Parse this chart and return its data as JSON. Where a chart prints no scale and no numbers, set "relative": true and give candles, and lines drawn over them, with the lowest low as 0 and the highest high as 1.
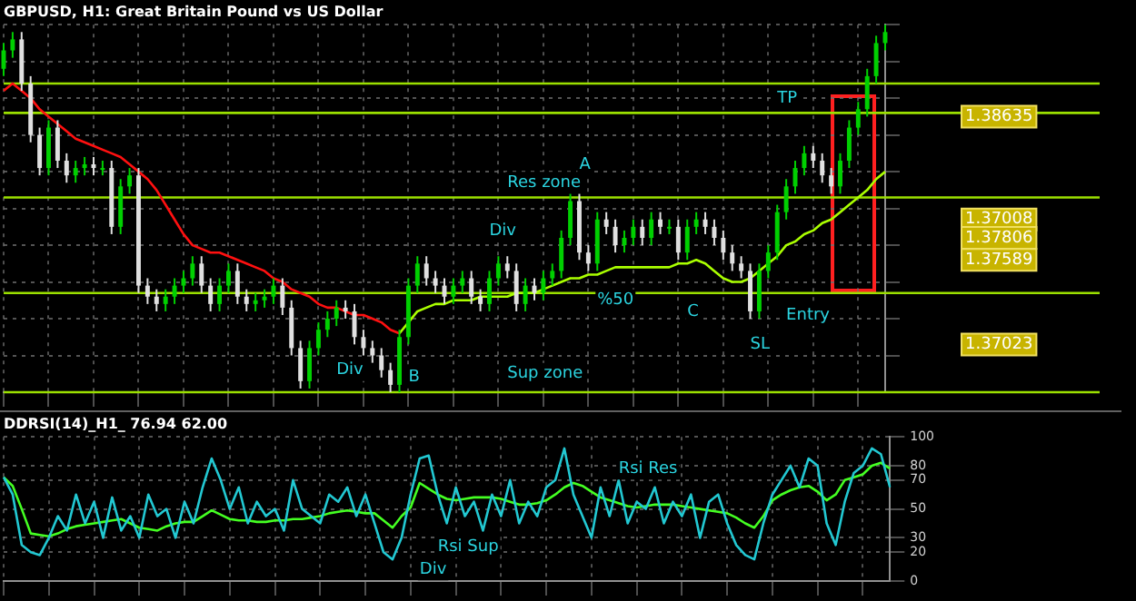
{
  "chart_data": [
    {
      "type": "candlestick",
      "title": "GBPUSD, H1: Great Britain Pound vs US Dollar",
      "relative": true,
      "grid": true,
      "tick_labels": false,
      "colors": [
        "#00d000",
        "#00d000",
        "#e0e0e0",
        "#e0e0e0",
        "#e0e0e0",
        "#00d000",
        "#e0e0e0",
        "#e0e0e0",
        "#00d000",
        "#00d000",
        "#e0e0e0",
        "#00d000",
        "#e0e0e0",
        "#00d000",
        "#00d000",
        "#e0e0e0",
        "#e0e0e0",
        "#e0e0e0",
        "#00d000",
        "#00d000",
        "#00d000",
        "#00d000",
        "#e0e0e0",
        "#e0e0e0",
        "#00d000",
        "#00d000",
        "#e0e0e0",
        "#e0e0e0",
        "#00d000",
        "#00d000",
        "#00d000",
        "#e0e0e0",
        "#e0e0e0",
        "#e0e0e0",
        "#00d000",
        "#00d000",
        "#00d000",
        "#00d000",
        "#e0e0e0",
        "#e0e0e0",
        "#e0e0e0",
        "#e0e0e0",
        "#e0e0e0",
        "#e0e0e0",
        "#00d000",
        "#00d000",
        "#00d000",
        "#e0e0e0",
        "#e0e0e0",
        "#e0e0e0",
        "#00d000",
        "#00d000",
        "#e0e0e0",
        "#e0e0e0",
        "#00d000",
        "#00d000",
        "#e0e0e0",
        "#e0e0e0",
        "#00d000",
        "#e0e0e0",
        "#00d000",
        "#00d000",
        "#00d000",
        "#00d000",
        "#e0e0e0",
        "#e0e0e0",
        "#00d000",
        "#e0e0e0",
        "#e0e0e0",
        "#00d000",
        "#00d000",
        "#e0e0e0",
        "#00d000",
        "#e0e0e0",
        "#00d000",
        "#e0e0e0",
        "#00d000",
        "#00d000",
        "#e0e0e0",
        "#e0e0e0",
        "#e0e0e0",
        "#e0e0e0",
        "#e0e0e0",
        "#e0e0e0",
        "#00d000",
        "#00d000",
        "#00d000",
        "#00d000",
        "#00d000",
        "#00d000",
        "#e0e0e0",
        "#e0e0e0",
        "#e0e0e0",
        "#00d000",
        "#00d000",
        "#00d000",
        "#00d000",
        "#00d000",
        "#00d000"
      ],
      "categories": [
        null,
        null,
        null,
        null,
        null,
        null,
        null,
        null,
        null,
        null,
        null,
        null,
        null,
        null,
        null,
        null,
        null,
        null,
        null,
        null,
        null,
        null,
        null,
        null,
        null,
        null,
        null,
        null,
        null,
        null,
        null,
        null,
        null,
        null,
        null,
        null,
        null,
        null,
        null,
        null,
        null,
        null,
        null,
        null,
        null,
        null,
        null,
        null,
        null,
        null,
        null,
        null,
        null,
        null,
        null,
        null,
        null,
        null,
        null,
        null,
        null,
        null,
        null,
        null,
        null,
        null,
        null,
        null,
        null,
        null,
        null,
        null,
        null,
        null,
        null,
        null,
        null,
        null,
        null,
        null,
        null,
        null,
        null,
        null,
        null,
        null,
        null,
        null,
        null,
        null,
        null,
        null,
        null,
        null,
        null,
        null,
        null,
        null,
        null
      ],
      "ohlc": [
        [
          0.88,
          0.95,
          0.86,
          0.93
        ],
        [
          0.93,
          0.98,
          0.91,
          0.96
        ],
        [
          0.96,
          0.98,
          0.82,
          0.84
        ],
        [
          0.84,
          0.86,
          0.68,
          0.7
        ],
        [
          0.7,
          0.72,
          0.59,
          0.61
        ],
        [
          0.61,
          0.74,
          0.59,
          0.72
        ],
        [
          0.72,
          0.74,
          0.61,
          0.63
        ],
        [
          0.63,
          0.65,
          0.57,
          0.59
        ],
        [
          0.59,
          0.63,
          0.57,
          0.61
        ],
        [
          0.61,
          0.64,
          0.59,
          0.62
        ],
        [
          0.62,
          0.64,
          0.59,
          0.61
        ],
        [
          0.61,
          0.63,
          0.59,
          0.61
        ],
        [
          0.61,
          0.63,
          0.43,
          0.45
        ],
        [
          0.45,
          0.58,
          0.43,
          0.56
        ],
        [
          0.56,
          0.61,
          0.54,
          0.59
        ],
        [
          0.59,
          0.61,
          0.27,
          0.29
        ],
        [
          0.29,
          0.31,
          0.24,
          0.26
        ],
        [
          0.26,
          0.28,
          0.22,
          0.24
        ],
        [
          0.24,
          0.28,
          0.22,
          0.26
        ],
        [
          0.26,
          0.31,
          0.24,
          0.29
        ],
        [
          0.29,
          0.33,
          0.27,
          0.31
        ],
        [
          0.31,
          0.37,
          0.29,
          0.35
        ],
        [
          0.35,
          0.37,
          0.27,
          0.29
        ],
        [
          0.29,
          0.31,
          0.22,
          0.24
        ],
        [
          0.24,
          0.31,
          0.22,
          0.29
        ],
        [
          0.29,
          0.35,
          0.27,
          0.33
        ],
        [
          0.33,
          0.35,
          0.24,
          0.26
        ],
        [
          0.26,
          0.28,
          0.22,
          0.24
        ],
        [
          0.24,
          0.27,
          0.22,
          0.25
        ],
        [
          0.25,
          0.28,
          0.23,
          0.26
        ],
        [
          0.26,
          0.31,
          0.24,
          0.29
        ],
        [
          0.29,
          0.31,
          0.21,
          0.23
        ],
        [
          0.23,
          0.25,
          0.1,
          0.12
        ],
        [
          0.12,
          0.14,
          0.01,
          0.03
        ],
        [
          0.03,
          0.14,
          0.01,
          0.12
        ],
        [
          0.12,
          0.19,
          0.1,
          0.17
        ],
        [
          0.17,
          0.22,
          0.15,
          0.2
        ],
        [
          0.2,
          0.25,
          0.18,
          0.23
        ],
        [
          0.23,
          0.25,
          0.2,
          0.22
        ],
        [
          0.22,
          0.24,
          0.13,
          0.15
        ],
        [
          0.15,
          0.17,
          0.1,
          0.12
        ],
        [
          0.12,
          0.14,
          0.08,
          0.1
        ],
        [
          0.1,
          0.12,
          0.04,
          0.06
        ],
        [
          0.06,
          0.08,
          0,
          0.02
        ],
        [
          0.02,
          0.17,
          0,
          0.15
        ],
        [
          0.15,
          0.31,
          0.13,
          0.29
        ],
        [
          0.29,
          0.37,
          0.27,
          0.35
        ],
        [
          0.35,
          0.37,
          0.29,
          0.31
        ],
        [
          0.31,
          0.33,
          0.27,
          0.29
        ],
        [
          0.29,
          0.31,
          0.24,
          0.26
        ],
        [
          0.26,
          0.31,
          0.24,
          0.29
        ],
        [
          0.29,
          0.33,
          0.27,
          0.31
        ],
        [
          0.31,
          0.33,
          0.24,
          0.26
        ],
        [
          0.26,
          0.28,
          0.22,
          0.24
        ],
        [
          0.24,
          0.33,
          0.22,
          0.31
        ],
        [
          0.31,
          0.37,
          0.29,
          0.35
        ],
        [
          0.35,
          0.37,
          0.31,
          0.33
        ],
        [
          0.33,
          0.35,
          0.22,
          0.24
        ],
        [
          0.24,
          0.31,
          0.22,
          0.29
        ],
        [
          0.29,
          0.31,
          0.25,
          0.27
        ],
        [
          0.27,
          0.33,
          0.25,
          0.31
        ],
        [
          0.31,
          0.35,
          0.29,
          0.33
        ],
        [
          0.33,
          0.44,
          0.31,
          0.42
        ],
        [
          0.42,
          0.54,
          0.4,
          0.52
        ],
        [
          0.52,
          0.54,
          0.36,
          0.38
        ],
        [
          0.38,
          0.4,
          0.33,
          0.35
        ],
        [
          0.35,
          0.49,
          0.33,
          0.47
        ],
        [
          0.47,
          0.49,
          0.43,
          0.45
        ],
        [
          0.45,
          0.47,
          0.38,
          0.4
        ],
        [
          0.4,
          0.44,
          0.38,
          0.42
        ],
        [
          0.42,
          0.47,
          0.4,
          0.45
        ],
        [
          0.45,
          0.47,
          0.4,
          0.42
        ],
        [
          0.42,
          0.49,
          0.4,
          0.47
        ],
        [
          0.47,
          0.49,
          0.43,
          0.45
        ],
        [
          0.45,
          0.47,
          0.43,
          0.45
        ],
        [
          0.45,
          0.47,
          0.36,
          0.38
        ],
        [
          0.38,
          0.47,
          0.36,
          0.45
        ],
        [
          0.45,
          0.49,
          0.43,
          0.47
        ],
        [
          0.47,
          0.49,
          0.43,
          0.45
        ],
        [
          0.45,
          0.47,
          0.4,
          0.42
        ],
        [
          0.42,
          0.44,
          0.36,
          0.38
        ],
        [
          0.38,
          0.4,
          0.33,
          0.35
        ],
        [
          0.35,
          0.37,
          0.31,
          0.33
        ],
        [
          0.33,
          0.35,
          0.2,
          0.22
        ],
        [
          0.22,
          0.35,
          0.2,
          0.33
        ],
        [
          0.33,
          0.4,
          0.31,
          0.38
        ],
        [
          0.38,
          0.51,
          0.36,
          0.49
        ],
        [
          0.49,
          0.58,
          0.47,
          0.56
        ],
        [
          0.56,
          0.63,
          0.54,
          0.61
        ],
        [
          0.61,
          0.67,
          0.59,
          0.65
        ],
        [
          0.65,
          0.67,
          0.61,
          0.63
        ],
        [
          0.63,
          0.65,
          0.57,
          0.59
        ],
        [
          0.59,
          0.61,
          0.54,
          0.56
        ],
        [
          0.56,
          0.65,
          0.54,
          0.63
        ],
        [
          0.63,
          0.74,
          0.61,
          0.72
        ],
        [
          0.72,
          0.79,
          0.7,
          0.77
        ],
        [
          0.77,
          0.88,
          0.75,
          0.86
        ],
        [
          0.86,
          0.97,
          0.84,
          0.95
        ],
        [
          0.95,
          1,
          0.93,
          0.98
        ]
      ],
      "series": [
        {
          "type": "line",
          "color": "#ff1010",
          "values": [
            0.82,
            0.84,
            0.82,
            0.8,
            0.77,
            0.75,
            0.73,
            0.71,
            0.69,
            0.68,
            0.67,
            0.66,
            0.65,
            0.64,
            0.62,
            0.6,
            0.58,
            0.55,
            0.51,
            0.47,
            0.43,
            0.4,
            0.39,
            0.38,
            0.38,
            0.37,
            0.36,
            0.35,
            0.34,
            0.33,
            0.31,
            0.3,
            0.28,
            0.27,
            0.26,
            0.24,
            0.23,
            0.23,
            0.22,
            0.21,
            0.21,
            0.2,
            0.19,
            0.17,
            0.16,
            null,
            null,
            null,
            null,
            null,
            null,
            null,
            null,
            null,
            null,
            null,
            null,
            null,
            null,
            null,
            null,
            null,
            null,
            null,
            null,
            null,
            null,
            null,
            null,
            null,
            null,
            null,
            null,
            null,
            null,
            null,
            null,
            null,
            null,
            null,
            null,
            null,
            null,
            null,
            null,
            null,
            null,
            null,
            null,
            null,
            null,
            null,
            null,
            null,
            null,
            null,
            null,
            null,
            null
          ]
        },
        {
          "type": "line",
          "color": "#aaff00",
          "values": [
            null,
            null,
            null,
            null,
            null,
            null,
            null,
            null,
            null,
            null,
            null,
            null,
            null,
            null,
            null,
            null,
            null,
            null,
            null,
            null,
            null,
            null,
            null,
            null,
            null,
            null,
            null,
            null,
            null,
            null,
            null,
            null,
            null,
            null,
            null,
            null,
            null,
            null,
            null,
            null,
            null,
            null,
            null,
            null,
            0.16,
            0.19,
            0.22,
            0.23,
            0.24,
            0.24,
            0.25,
            0.25,
            0.25,
            0.26,
            0.26,
            0.26,
            0.26,
            0.27,
            0.27,
            0.27,
            0.28,
            0.29,
            0.3,
            0.31,
            0.31,
            0.32,
            0.32,
            0.33,
            0.34,
            0.34,
            0.34,
            0.34,
            0.34,
            0.34,
            0.34,
            0.35,
            0.35,
            0.36,
            0.35,
            0.33,
            0.31,
            0.3,
            0.3,
            0.31,
            0.33,
            0.35,
            0.37,
            0.4,
            0.41,
            0.43,
            0.44,
            0.46,
            0.47,
            0.49,
            0.51,
            0.53,
            0.55,
            0.58,
            0.6
          ]
        }
      ],
      "ref_lines": [
        {
          "axis": "y",
          "value": 0.84,
          "color": "#9be000"
        },
        {
          "axis": "y",
          "value": 0.76,
          "color": "#9be000"
        },
        {
          "axis": "y",
          "value": 0.53,
          "color": "#9be000"
        },
        {
          "axis": "y",
          "value": 0.27,
          "color": "#9be000"
        },
        {
          "axis": "y",
          "value": 0,
          "color": "#9be000"
        }
      ],
      "annotations": [
        "Res zone",
        "A",
        "Div",
        "Div",
        "B",
        "Sup zone",
        "%50",
        "C",
        "Entry",
        "SL",
        "TP",
        "1.38635",
        "1.37008",
        "1.37806",
        "1.37589",
        "1.37023"
      ]
    },
    {
      "type": "line",
      "title": "DDRSI(14)_H1_ 76.94 62.00",
      "grid": true,
      "tick_labels": "y",
      "ylim": [
        0,
        100
      ],
      "yticks": [
        0,
        20,
        30,
        50,
        70,
        80,
        100
      ],
      "categories": [
        null,
        null,
        null,
        null,
        null,
        null,
        null,
        null,
        null,
        null,
        null,
        null,
        null,
        null,
        null,
        null,
        null,
        null,
        null,
        null,
        null,
        null,
        null,
        null,
        null,
        null,
        null,
        null,
        null,
        null,
        null,
        null,
        null,
        null,
        null,
        null,
        null,
        null,
        null,
        null,
        null,
        null,
        null,
        null,
        null,
        null,
        null,
        null,
        null,
        null,
        null,
        null,
        null,
        null,
        null,
        null,
        null,
        null,
        null,
        null,
        null,
        null,
        null,
        null,
        null,
        null,
        null,
        null,
        null,
        null,
        null,
        null,
        null,
        null,
        null,
        null,
        null,
        null,
        null,
        null,
        null,
        null,
        null,
        null,
        null,
        null,
        null,
        null,
        null,
        null,
        null,
        null,
        null,
        null,
        null,
        null,
        null,
        null,
        null
      ],
      "series": [
        {
          "color": "#22c8d2",
          "values": [
            72,
            60,
            25,
            20,
            18,
            30,
            45,
            35,
            60,
            40,
            55,
            30,
            58,
            35,
            45,
            30,
            60,
            45,
            50,
            30,
            55,
            40,
            65,
            85,
            70,
            50,
            65,
            40,
            55,
            45,
            50,
            35,
            70,
            50,
            45,
            40,
            60,
            55,
            65,
            45,
            60,
            40,
            20,
            15,
            30,
            60,
            85,
            87,
            60,
            40,
            65,
            45,
            55,
            35,
            60,
            45,
            70,
            40,
            55,
            45,
            65,
            70,
            92,
            60,
            45,
            30,
            65,
            45,
            70,
            40,
            55,
            50,
            65,
            40,
            55,
            45,
            60,
            30,
            55,
            60,
            40,
            25,
            18,
            15,
            40,
            60,
            70,
            80,
            65,
            85,
            80,
            40,
            25,
            55,
            75,
            80,
            92,
            88,
            65
          ]
        },
        {
          "color": "#44ff22",
          "values": [
            72,
            66,
            50,
            33,
            32,
            31,
            33,
            36,
            38,
            39,
            40,
            41,
            42,
            43,
            40,
            37,
            36,
            35,
            38,
            40,
            41,
            41,
            45,
            49,
            46,
            43,
            42,
            42,
            41,
            41,
            42,
            42,
            43,
            43,
            44,
            45,
            47,
            48,
            49,
            48,
            47,
            47,
            42,
            37,
            45,
            51,
            68,
            64,
            60,
            57,
            56,
            57,
            58,
            58,
            58,
            57,
            55,
            53,
            53,
            54,
            56,
            60,
            65,
            68,
            66,
            62,
            58,
            56,
            54,
            52,
            51,
            52,
            53,
            53,
            53,
            52,
            51,
            50,
            49,
            48,
            47,
            44,
            40,
            37,
            45,
            56,
            60,
            63,
            65,
            66,
            62,
            56,
            60,
            70,
            72,
            74,
            80,
            82,
            78
          ]
        }
      ],
      "annotations": [
        "Rsi Res",
        "Rsi Sup",
        "Div"
      ]
    }
  ]
}
